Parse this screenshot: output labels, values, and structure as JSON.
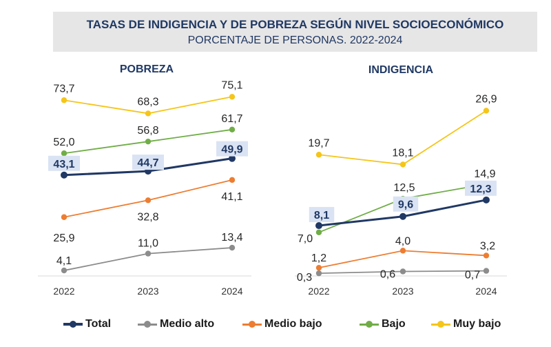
{
  "title": "TASAS DE INDIGENCIA Y DE POBREZA SEGÚN NIVEL SOCIOECONÓMICO",
  "subtitle": "PORCENTAJE DE PERSONAS. 2022-2024",
  "colors": {
    "Total": "#203864",
    "Medio alto": "#8c8c8c",
    "Medio bajo": "#ed7d31",
    "Bajo": "#70ad47",
    "Muy bajo": "#f5c518"
  },
  "legend": [
    "Total",
    "Medio alto",
    "Medio bajo",
    "Bajo",
    "Muy bajo"
  ],
  "chart_data": [
    {
      "type": "line",
      "title": "POBREZA",
      "categories": [
        "2022",
        "2023",
        "2024"
      ],
      "ylim": [
        0,
        80
      ],
      "series": [
        {
          "name": "Muy bajo",
          "values": [
            73.7,
            68.3,
            75.1
          ],
          "labels": [
            "73,7",
            "68,3",
            "75,1"
          ]
        },
        {
          "name": "Bajo",
          "values": [
            52.0,
            56.8,
            61.7
          ],
          "labels": [
            "52,0",
            "56,8",
            "61,7"
          ]
        },
        {
          "name": "Total",
          "values": [
            43.1,
            44.7,
            49.9
          ],
          "labels": [
            "43,1",
            "44,7",
            "49,9"
          ]
        },
        {
          "name": "Medio bajo",
          "values": [
            25.9,
            32.8,
            41.1
          ],
          "labels": [
            "25,9",
            "32,8",
            "41,1"
          ]
        },
        {
          "name": "Medio alto",
          "values": [
            4.1,
            11.0,
            13.4
          ],
          "labels": [
            "4,1",
            "11,0",
            "13,4"
          ]
        }
      ]
    },
    {
      "type": "line",
      "title": "INDIGENCIA",
      "categories": [
        "2022",
        "2023",
        "2024"
      ],
      "ylim": [
        0,
        30
      ],
      "series": [
        {
          "name": "Muy bajo",
          "values": [
            19.7,
            18.1,
            26.9
          ],
          "labels": [
            "19,7",
            "18,1",
            "26,9"
          ]
        },
        {
          "name": "Bajo",
          "values": [
            7.0,
            12.5,
            14.9
          ],
          "labels": [
            "7,0",
            "12,5",
            "14,9"
          ]
        },
        {
          "name": "Total",
          "values": [
            8.1,
            9.6,
            12.3
          ],
          "labels": [
            "8,1",
            "9,6",
            "12,3"
          ]
        },
        {
          "name": "Medio bajo",
          "values": [
            1.2,
            4.0,
            3.2
          ],
          "labels": [
            "1,2",
            "4,0",
            "3,2"
          ]
        },
        {
          "name": "Medio alto",
          "values": [
            0.3,
            0.6,
            0.7
          ],
          "labels": [
            "0,3",
            "0,6",
            "0,7"
          ]
        }
      ]
    }
  ]
}
